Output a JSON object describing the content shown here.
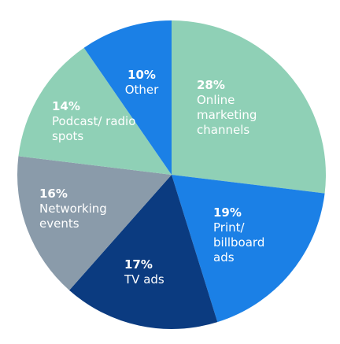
{
  "chart_data": {
    "type": "pie",
    "categories": [
      "Online marketing channels",
      "Print/ billboard ads",
      "TV ads",
      "Networking events",
      "Podcast/ radio spots",
      "Other"
    ],
    "values": [
      28,
      19,
      17,
      16,
      14,
      10
    ],
    "value_labels": [
      "28%",
      "19%",
      "17%",
      "16%",
      "14%",
      "10%"
    ],
    "colors": [
      "#8fd0b6",
      "#1b80e6",
      "#0b3b80",
      "#8a9baa",
      "#8fd0b6",
      "#1b80e6"
    ]
  }
}
